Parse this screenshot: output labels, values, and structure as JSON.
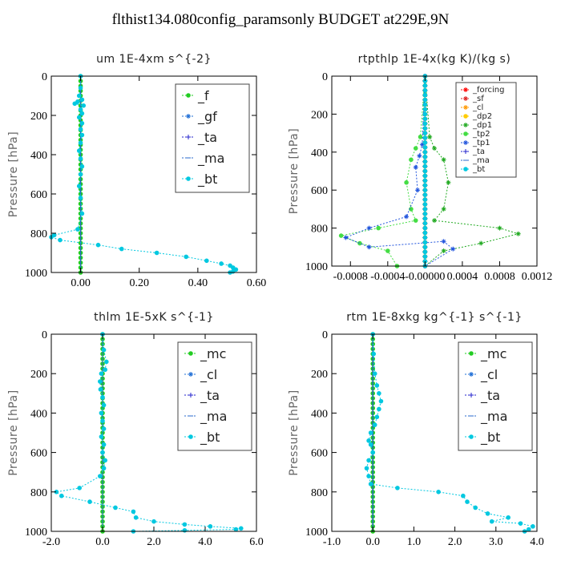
{
  "title": "flthist134.080config_paramsonly  BUDGET at229E,9N",
  "colors": {
    "f": "#22cc22",
    "gf": "#1f6fd6",
    "ta": "#2222cc",
    "ma": "#2a6acc",
    "bt": "#00c8e0",
    "forcing": "#ff0000",
    "sf": "#dd2222",
    "cl": "#ff9900",
    "dp2": "#ffcc00",
    "dp1": "#22aa22",
    "tp2": "#44dd44",
    "tp1": "#2255dd",
    "mc": "#22cc22"
  },
  "chart_data": [
    {
      "type": "line",
      "title": "um   1E-4xm s^{-2}",
      "ylabel": "Pressure [hPa]",
      "xlim": [
        -0.1,
        0.6
      ],
      "ylim": [
        1000,
        0
      ],
      "xticks": [
        0.0,
        0.2,
        0.4,
        0.6
      ],
      "xtick_labels": [
        "0.00",
        "0.20",
        "0.40",
        "0.60"
      ],
      "yticks": [
        0,
        200,
        400,
        600,
        800,
        1000
      ],
      "ytick_labels": [
        "0",
        "200",
        "400",
        "600",
        "800",
        "1000"
      ],
      "legend_style": "large",
      "series": [
        {
          "name": "_f",
          "color": "#22cc22",
          "marker": "o",
          "x": [
            0,
            0
          ],
          "y": [
            0,
            1000
          ]
        },
        {
          "name": "_gf",
          "color": "#1f6fd6",
          "marker": "*",
          "dense_zero": true
        },
        {
          "name": "_ta",
          "color": "#2222cc",
          "marker": "+",
          "dense_zero": true
        },
        {
          "name": "_ma",
          "color": "#2a6acc",
          "marker": "-",
          "dense_zero": true
        },
        {
          "name": "_bt",
          "color": "#00c8e0",
          "marker": "o",
          "x": [
            0,
            0,
            -0.005,
            0.005,
            -0.01,
            -0.02,
            0.01,
            0,
            0.005,
            -0.005,
            0.005,
            0,
            0.005,
            0,
            -0.005,
            0,
            0.005,
            0,
            -0.005,
            0,
            0.005,
            -0.01,
            -0.09,
            -0.1,
            -0.07,
            0.06,
            0.14,
            0.26,
            0.36,
            0.43,
            0.48,
            0.51,
            0.52,
            0.53,
            0.52,
            0.51
          ],
          "y": [
            0,
            60,
            100,
            120,
            130,
            140,
            150,
            170,
            190,
            210,
            240,
            270,
            300,
            340,
            380,
            420,
            460,
            500,
            560,
            620,
            700,
            780,
            810,
            820,
            835,
            860,
            880,
            900,
            920,
            940,
            955,
            965,
            975,
            985,
            995,
            1000
          ]
        }
      ]
    },
    {
      "type": "line",
      "title": "rtpthlp   1E-4x(kg K)/(kg s)",
      "ylabel": "Pressure [hPa]",
      "xlim": [
        -0.001,
        0.0012
      ],
      "ylim": [
        1000,
        0
      ],
      "xticks": [
        -0.0008,
        -0.0004,
        0.0,
        0.0004,
        0.0008,
        0.0012
      ],
      "xtick_labels": [
        "-0.0008",
        "-0.0004",
        "-0.00000",
        "0.0004",
        "0.0008",
        "0.0012"
      ],
      "yticks": [
        0,
        200,
        400,
        600,
        800,
        1000
      ],
      "ytick_labels": [
        "0",
        "200",
        "400",
        "600",
        "800",
        "1000"
      ],
      "legend_style": "small",
      "series": [
        {
          "name": "_forcing",
          "color": "#ff0000",
          "marker": "*",
          "x": [
            0,
            0
          ],
          "y": [
            0,
            1000
          ]
        },
        {
          "name": "_sf",
          "color": "#dd2222",
          "marker": "*",
          "x": [
            0,
            0
          ],
          "y": [
            0,
            1000
          ]
        },
        {
          "name": "_cl",
          "color": "#ff9900",
          "marker": "*",
          "x": [
            0,
            0
          ],
          "y": [
            0,
            1000
          ]
        },
        {
          "name": "_dp2",
          "color": "#ffcc00",
          "marker": "o",
          "x": [
            0,
            0
          ],
          "y": [
            0,
            1000
          ]
        },
        {
          "name": "_dp1",
          "color": "#22aa22",
          "marker": "*",
          "x": [
            0,
            5e-05,
            0.0001,
            0.0002,
            0.00025,
            0.0002,
            0.0001,
            0.0008,
            0.001,
            0.0006,
            0.0002,
            0.0
          ],
          "y": [
            0,
            320,
            380,
            440,
            560,
            700,
            760,
            800,
            830,
            880,
            920,
            1000
          ]
        },
        {
          "name": "_tp2",
          "color": "#44dd44",
          "marker": "o",
          "x": [
            0,
            -5e-05,
            -0.0001,
            -0.00015,
            -0.0002,
            -0.00015,
            -0.0001,
            -0.0005,
            -0.0009,
            -0.0007,
            -0.0004,
            -0.0003
          ],
          "y": [
            0,
            320,
            380,
            440,
            560,
            700,
            760,
            800,
            840,
            880,
            920,
            1000
          ]
        },
        {
          "name": "_tp1",
          "color": "#2255dd",
          "marker": "*",
          "x": [
            0,
            -3e-05,
            -6e-05,
            -0.0001,
            -8e-05,
            -0.0002,
            -0.0006,
            -0.00085,
            -0.0006,
            0.0002,
            0.0003,
            0.0
          ],
          "y": [
            0,
            360,
            420,
            480,
            600,
            740,
            800,
            850,
            900,
            870,
            910,
            1000
          ]
        },
        {
          "name": "_ta",
          "color": "#2222cc",
          "marker": "+",
          "x": [
            0,
            0
          ],
          "y": [
            0,
            1000
          ]
        },
        {
          "name": "_ma",
          "color": "#2a6acc",
          "marker": "-",
          "x": [
            0,
            0
          ],
          "y": [
            0,
            1000
          ]
        },
        {
          "name": "_bt",
          "color": "#00c8e0",
          "marker": "o",
          "x": [
            0,
            0
          ],
          "y": [
            0,
            1000
          ]
        }
      ]
    },
    {
      "type": "line",
      "title": "thlm   1E-5xK s^{-1}",
      "ylabel": "Pressure [hPa]",
      "xlim": [
        -2.0,
        6.0
      ],
      "ylim": [
        1000,
        0
      ],
      "xticks": [
        -2.0,
        0.0,
        2.0,
        4.0,
        6.0
      ],
      "xtick_labels": [
        "-2.0",
        "0.0",
        "2.0",
        "4.0",
        "6.0"
      ],
      "yticks": [
        0,
        200,
        400,
        600,
        800,
        1000
      ],
      "ytick_labels": [
        "0",
        "200",
        "400",
        "600",
        "800",
        "1000"
      ],
      "legend_style": "large",
      "series": [
        {
          "name": "_mc",
          "color": "#22cc22",
          "marker": "o",
          "x": [
            0,
            0
          ],
          "y": [
            0,
            1000
          ]
        },
        {
          "name": "_cl",
          "color": "#1f6fd6",
          "marker": "*",
          "dense_zero": true
        },
        {
          "name": "_ta",
          "color": "#2222cc",
          "marker": "+",
          "dense_zero": true
        },
        {
          "name": "_ma",
          "color": "#2a6acc",
          "marker": "-",
          "dense_zero": true
        },
        {
          "name": "_bt",
          "color": "#00c8e0",
          "marker": "o",
          "x": [
            0,
            0.05,
            0.15,
            0.1,
            -0.05,
            -0.1,
            -0.08,
            0,
            0.05,
            -0.05,
            0,
            0.05,
            -0.05,
            0.05,
            0,
            0.1,
            0.05,
            -0.1,
            -0.9,
            -1.8,
            -1.6,
            -0.5,
            0.5,
            1.2,
            1.3,
            2.0,
            3.2,
            4.2,
            5.4,
            5.2,
            3.2,
            1.2
          ],
          "y": [
            0,
            80,
            140,
            180,
            200,
            240,
            280,
            320,
            360,
            400,
            440,
            480,
            520,
            560,
            600,
            640,
            680,
            720,
            780,
            800,
            820,
            850,
            880,
            900,
            930,
            950,
            965,
            975,
            985,
            990,
            995,
            1000
          ]
        }
      ]
    },
    {
      "type": "line",
      "title": "rtm   1E-8xkg kg^{-1} s^{-1}",
      "ylabel": "Pressure [hPa]",
      "xlim": [
        -1.0,
        4.0
      ],
      "ylim": [
        1000,
        0
      ],
      "xticks": [
        -1.0,
        0.0,
        1.0,
        2.0,
        3.0,
        4.0
      ],
      "xtick_labels": [
        "-1.0",
        "0.0",
        "1.0",
        "2.0",
        "3.0",
        "4.0"
      ],
      "yticks": [
        0,
        200,
        400,
        600,
        800,
        1000
      ],
      "ytick_labels": [
        "0",
        "200",
        "400",
        "600",
        "800",
        "1000"
      ],
      "legend_style": "large",
      "series": [
        {
          "name": "_mc",
          "color": "#22cc22",
          "marker": "o",
          "x": [
            0,
            0
          ],
          "y": [
            0,
            1000
          ]
        },
        {
          "name": "_cl",
          "color": "#1f6fd6",
          "marker": "*",
          "dense_zero": true
        },
        {
          "name": "_ta",
          "color": "#2222cc",
          "marker": "+",
          "dense_zero": true
        },
        {
          "name": "_ma",
          "color": "#2a6acc",
          "marker": "-",
          "dense_zero": true
        },
        {
          "name": "_bt",
          "color": "#00c8e0",
          "marker": "o",
          "x": [
            0,
            0.02,
            0.05,
            0.1,
            0.15,
            0.2,
            0.15,
            0.1,
            0.05,
            -0.05,
            -0.1,
            -0.05,
            0,
            -0.1,
            -0.15,
            -0.1,
            -0.05,
            0.6,
            1.6,
            2.2,
            2.3,
            2.5,
            2.8,
            3.3,
            2.9,
            3.6,
            3.9,
            3.8,
            3.7
          ],
          "y": [
            0,
            100,
            200,
            260,
            300,
            340,
            380,
            420,
            460,
            500,
            540,
            560,
            600,
            640,
            680,
            720,
            760,
            780,
            800,
            820,
            850,
            880,
            910,
            930,
            950,
            960,
            975,
            990,
            1000
          ]
        }
      ]
    }
  ]
}
